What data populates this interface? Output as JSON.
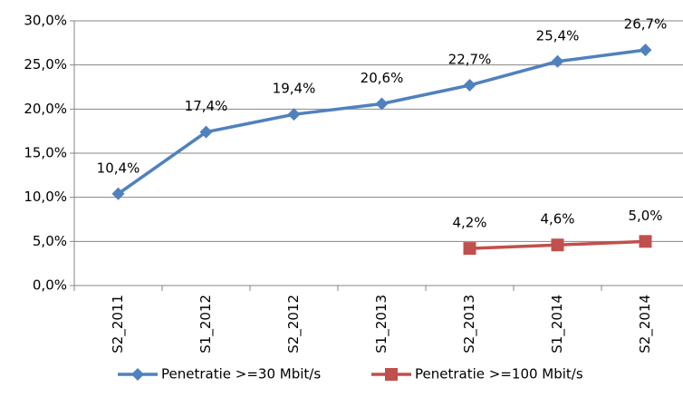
{
  "chart_data": {
    "type": "line",
    "categories": [
      "S2_2011",
      "S1_2012",
      "S2_2012",
      "S1_2013",
      "S2_2013",
      "S1_2014",
      "S2_2014"
    ],
    "series": [
      {
        "name": "Penetratie >=30 Mbit/s",
        "color": "#4f81bd",
        "marker": "diamond",
        "values": [
          10.4,
          17.4,
          19.4,
          20.6,
          22.7,
          25.4,
          26.7
        ],
        "value_labels": [
          "10,4%",
          "17,4%",
          "19,4%",
          "20,6%",
          "22,7%",
          "25,4%",
          "26,7%"
        ]
      },
      {
        "name": "Penetratie >=100 Mbit/s",
        "color": "#c0504d",
        "marker": "square",
        "values": [
          null,
          null,
          null,
          null,
          4.2,
          4.6,
          5.0
        ],
        "value_labels": [
          null,
          null,
          null,
          null,
          "4,2%",
          "4,6%",
          "5,0%"
        ]
      }
    ],
    "ylim": [
      0,
      30
    ],
    "yticks": [
      {
        "value": 0,
        "label": "0,0%"
      },
      {
        "value": 5,
        "label": "5,0%"
      },
      {
        "value": 10,
        "label": "10,0%"
      },
      {
        "value": 15,
        "label": "15,0%"
      },
      {
        "value": 20,
        "label": "20,0%"
      },
      {
        "value": 25,
        "label": "25,0%"
      },
      {
        "value": 30,
        "label": "30,0%"
      }
    ],
    "grid": true,
    "legend": "bottom"
  }
}
